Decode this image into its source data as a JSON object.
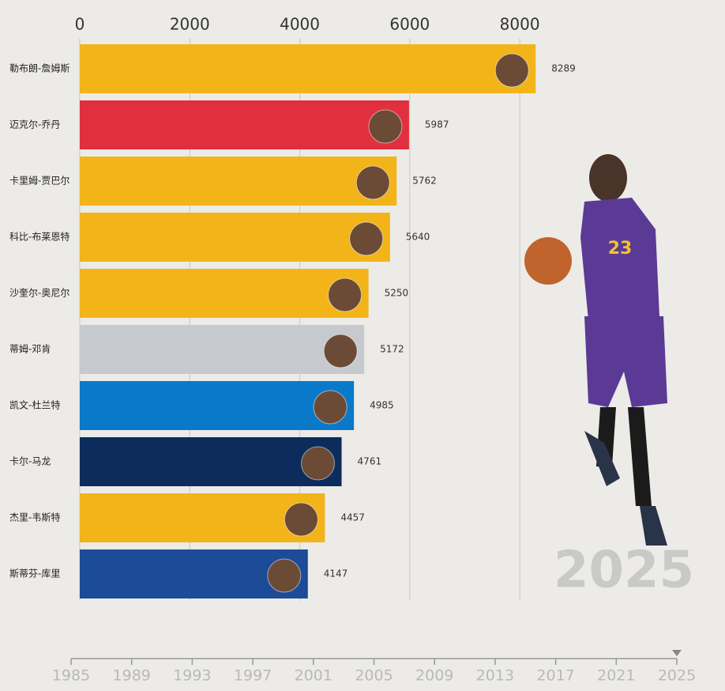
{
  "chart_data": {
    "type": "bar",
    "orientation": "horizontal",
    "categories": [
      "勒布朗-詹姆斯",
      "迈克尔-乔丹",
      "卡里姆-贾巴尔",
      "科比-布莱恩特",
      "沙奎尔-奥尼尔",
      "蒂姆-邓肯",
      "凯文-杜兰特",
      "卡尔-马龙",
      "杰里-韦斯特",
      "斯蒂芬-库里"
    ],
    "values": [
      8289,
      5987,
      5762,
      5640,
      5250,
      5172,
      4985,
      4761,
      4457,
      4147
    ],
    "colors": [
      "#f2b418",
      "#e0303f",
      "#f2b418",
      "#f2b418",
      "#f2b418",
      "#c6c9cd",
      "#0b79c9",
      "#0c2c5c",
      "#f2b418",
      "#1c4c98"
    ],
    "xlim": [
      0,
      8300
    ],
    "xticks": [
      0,
      2000,
      4000,
      6000,
      8000
    ],
    "grid": true,
    "timeline": {
      "xlim": [
        1985,
        2025
      ],
      "xticks": [
        1985,
        1989,
        1993,
        1997,
        2001,
        2005,
        2009,
        2013,
        2017,
        2021,
        2025
      ],
      "value": 2025
    }
  }
}
